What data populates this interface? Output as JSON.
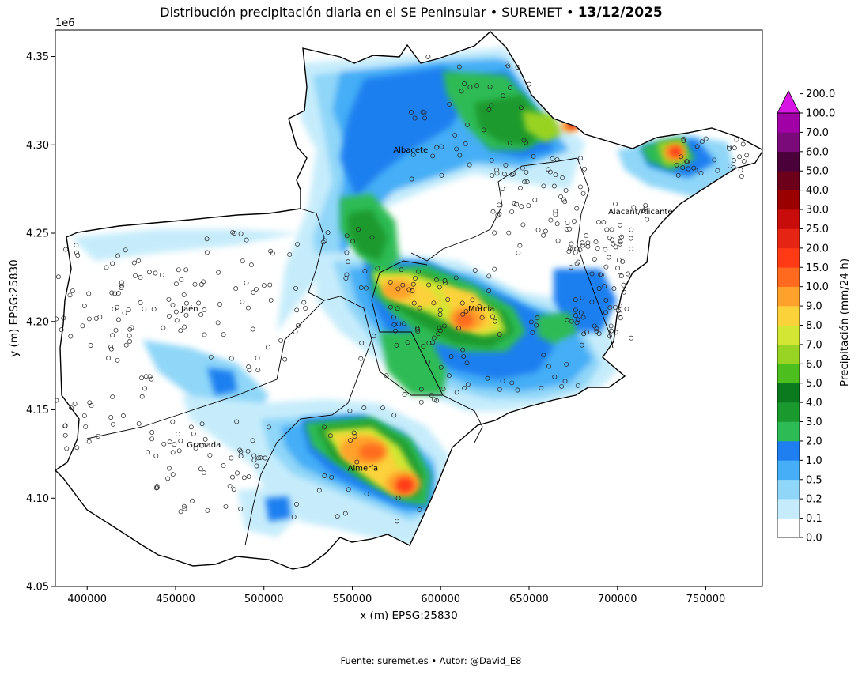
{
  "title": {
    "main": "Distribución precipitación diaria en el SE Peninsular • SUREMET • ",
    "date": "13/12/2025"
  },
  "map": {
    "xlabel": "x (m) EPSG:25830",
    "ylabel": "y (m) EPSG:25830",
    "y_offset_label": "1e6",
    "x_ticks": [
      "400000",
      "450000",
      "500000",
      "550000",
      "600000",
      "650000",
      "700000",
      "750000"
    ],
    "y_ticks": [
      "4.05",
      "4.10",
      "4.15",
      "4.20",
      "4.25",
      "4.30",
      "4.35"
    ],
    "x_range": [
      382000,
      782000
    ],
    "y_range": [
      4050000,
      4365000
    ],
    "cities": [
      {
        "name": "Albacete",
        "x": 583000,
        "y": 4297000
      },
      {
        "name": "Jaén",
        "x": 458000,
        "y": 4207000
      },
      {
        "name": "Murcia",
        "x": 623000,
        "y": 4207000
      },
      {
        "name": "Alacant/Alicante",
        "x": 713000,
        "y": 4262000
      },
      {
        "name": "Granada",
        "x": 466000,
        "y": 4130000
      },
      {
        "name": "Almería",
        "x": 556000,
        "y": 4117000
      }
    ]
  },
  "colorbar": {
    "label": "Precipitación (mm/24 h)",
    "ticks": [
      "0.0",
      "0.1",
      "0.2",
      "0.5",
      "1.0",
      "2.0",
      "3.0",
      "4.0",
      "5.0",
      "6.0",
      "7.0",
      "8.0",
      "9.0",
      "10.0",
      "15.0",
      "20.0",
      "25.0",
      "30.0",
      "40.0",
      "50.0",
      "60.0",
      "70.0",
      "100.0",
      "200.0"
    ],
    "colors": [
      "#ffffff",
      "#c6ecfb",
      "#8fd6f8",
      "#45aef6",
      "#1f7ff0",
      "#2dbb55",
      "#1a9a2e",
      "#0b7a1e",
      "#4cbe1e",
      "#99d324",
      "#d2e633",
      "#fcd23a",
      "#ffa12a",
      "#ff6a1f",
      "#ff3a14",
      "#e62414",
      "#c80b0b",
      "#9a0000",
      "#6c001a",
      "#4a0038",
      "#7a0a7a",
      "#a000a6"
    ],
    "extend_color": "#d816e4"
  },
  "footer": "Fuente: suremet.es  •  Autor: @David_E8"
}
